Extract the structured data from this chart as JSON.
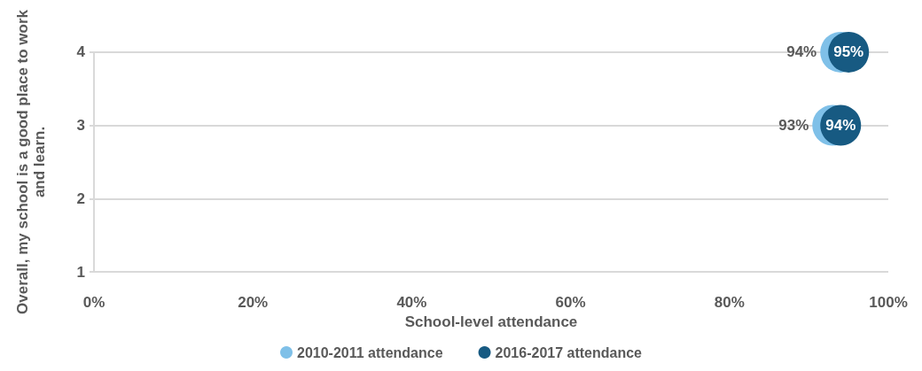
{
  "chart_data": {
    "type": "scatter",
    "orientation": "horizontal",
    "xlabel": "School-level attendance",
    "ylabel": "Overall, my school is a good place to work\nand learn.",
    "categories": [
      "4",
      "3",
      "2",
      "1"
    ],
    "xlim": [
      0,
      100
    ],
    "xticks": [
      {
        "value": 0,
        "label": "0%"
      },
      {
        "value": 20,
        "label": "20%"
      },
      {
        "value": 40,
        "label": "40%"
      },
      {
        "value": 60,
        "label": "60%"
      },
      {
        "value": 80,
        "label": "80%"
      },
      {
        "value": 100,
        "label": "100%"
      }
    ],
    "grid": "y",
    "legend": "bottom",
    "marker": "circle",
    "series": [
      {
        "name": "2010-2011 attendance",
        "color": "#7fc0e8",
        "values": [
          94,
          93,
          null,
          null
        ],
        "value_labels": [
          "94%",
          "93%",
          null,
          null
        ]
      },
      {
        "name": "2016-2017 attendance",
        "color": "#175a82",
        "values": [
          95,
          94,
          null,
          null
        ],
        "value_labels": [
          "95%",
          "94%",
          null,
          null
        ]
      }
    ]
  }
}
